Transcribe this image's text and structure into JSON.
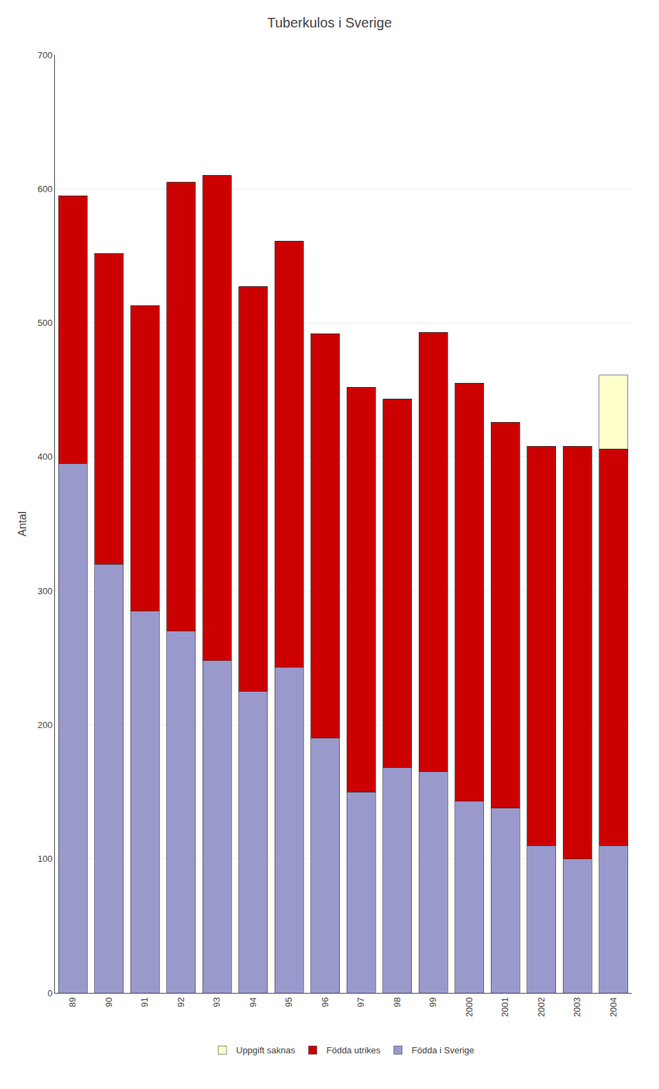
{
  "chart_data": {
    "type": "bar",
    "stacked": true,
    "title": "Tuberkulos i Sverige",
    "y_label": "Antal",
    "categories": [
      "89",
      "90",
      "91",
      "92",
      "93",
      "94",
      "95",
      "96",
      "97",
      "98",
      "99",
      "2000",
      "2001",
      "2002",
      "2003",
      "2004"
    ],
    "series": [
      {
        "name": "Födda i Sverige",
        "color": "#9999CC",
        "values": [
          395,
          320,
          285,
          270,
          248,
          225,
          243,
          190,
          150,
          168,
          165,
          143,
          138,
          110,
          100,
          110
        ]
      },
      {
        "name": "Födda utrikes",
        "color": "#CC0000",
        "values": [
          200,
          232,
          228,
          335,
          362,
          302,
          318,
          302,
          302,
          275,
          328,
          312,
          288,
          298,
          308,
          296
        ]
      },
      {
        "name": "Uppgift saknas",
        "color": "#FFFFCC",
        "values": [
          0,
          0,
          0,
          0,
          0,
          0,
          0,
          0,
          0,
          0,
          0,
          0,
          0,
          0,
          0,
          55
        ]
      }
    ],
    "ylim": [
      0,
      700
    ],
    "yticks": [
      0,
      100,
      200,
      300,
      400,
      500,
      600,
      700
    ],
    "grid": true,
    "legend": "bottom"
  }
}
